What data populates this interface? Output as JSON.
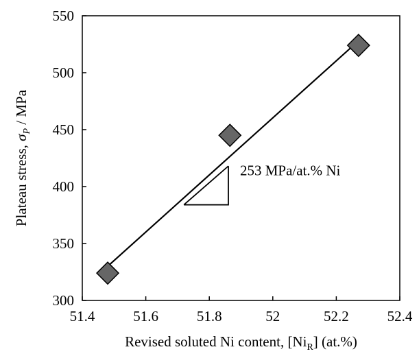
{
  "chart_data": {
    "type": "scatter",
    "xlabel": "Revised soluted Ni content, [Ni",
    "xlabel_sub": "R",
    "xlabel_suffix": "] (at.%)",
    "ylabel": "Plateau stress, ",
    "ylabel_symbol": "σ",
    "ylabel_sub": "P",
    "ylabel_suffix": " / MPa",
    "xlim": [
      51.4,
      52.4
    ],
    "ylim": [
      300,
      550
    ],
    "x_ticks": [
      "51.4",
      "51.6",
      "51.8",
      "52",
      "52.2",
      "52.4"
    ],
    "y_ticks": [
      "300",
      "350",
      "400",
      "450",
      "500",
      "550"
    ],
    "grid": false,
    "legend": "none",
    "marker": "diamond",
    "marker_color": "#666666",
    "series": [
      {
        "x": [
          51.48,
          51.865,
          52.27
        ],
        "y": [
          324,
          445,
          524
        ]
      }
    ],
    "fit_line": {
      "x": [
        51.48,
        52.27
      ],
      "y": [
        330,
        528
      ]
    },
    "slope_triangle": {
      "x": [
        51.72,
        51.86
      ],
      "y": [
        384,
        418
      ]
    },
    "annotation": "253 MPa/at.% Ni"
  }
}
